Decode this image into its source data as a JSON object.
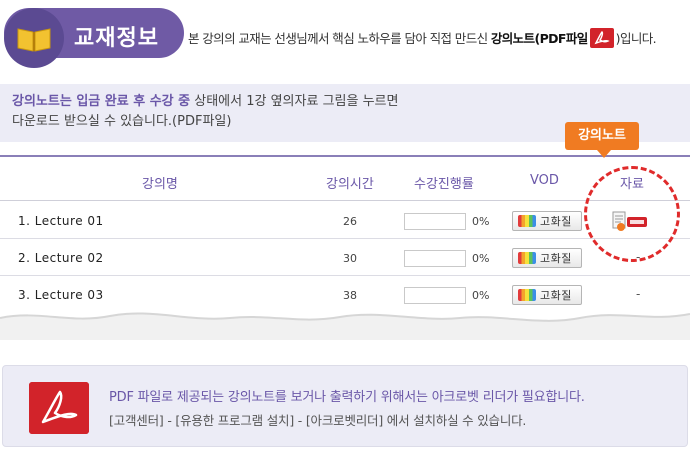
{
  "header": {
    "title": "교재정보",
    "desc_before": "본 강의의 교재는 선생님께서 핵심 노하우를 담아 직접 만드신 ",
    "desc_bold": "강의노트(PDF파일",
    "desc_after": ")입니다.",
    "book_icon": "book-icon"
  },
  "notice": {
    "highlight": "강의노트는 입금 완료 후 수강 중",
    "line1_rest": " 상태에서 1강 옆의자료 그림을 누르면",
    "line2": "다운로드 받으실 수 있습니다.(PDF파일)"
  },
  "table": {
    "headers": {
      "name": "강의명",
      "time": "강의시간",
      "progress": "수강진행률",
      "vod": "VOD",
      "material": "자료"
    },
    "rows": [
      {
        "name": "1. Lecture 01",
        "time": "26",
        "progress_pct": 0,
        "progress_label": "0%",
        "vod_label": "고화질",
        "material": "file-icon"
      },
      {
        "name": "2. Lecture 02",
        "time": "30",
        "progress_pct": 0,
        "progress_label": "0%",
        "vod_label": "고화질",
        "material": "-"
      },
      {
        "name": "3. Lecture 03",
        "time": "38",
        "progress_pct": 0,
        "progress_label": "0%",
        "vod_label": "고화질",
        "material": "-"
      }
    ]
  },
  "callout": {
    "label": "강의노트"
  },
  "info": {
    "line1": "PDF 파일로 제공되는 강의노트를 보거나 출력하기 위해서는 아크로벳 리더가 필요합니다.",
    "line2": "[고객센터] - [유용한 프로그램 설치] - [아크로벳리더] 에서 설치하실 수 있습니다."
  },
  "colors": {
    "accent": "#6f5aa5",
    "callout": "#f07b22",
    "pdf_red": "#d2232a",
    "circle": "#e02b2b"
  }
}
